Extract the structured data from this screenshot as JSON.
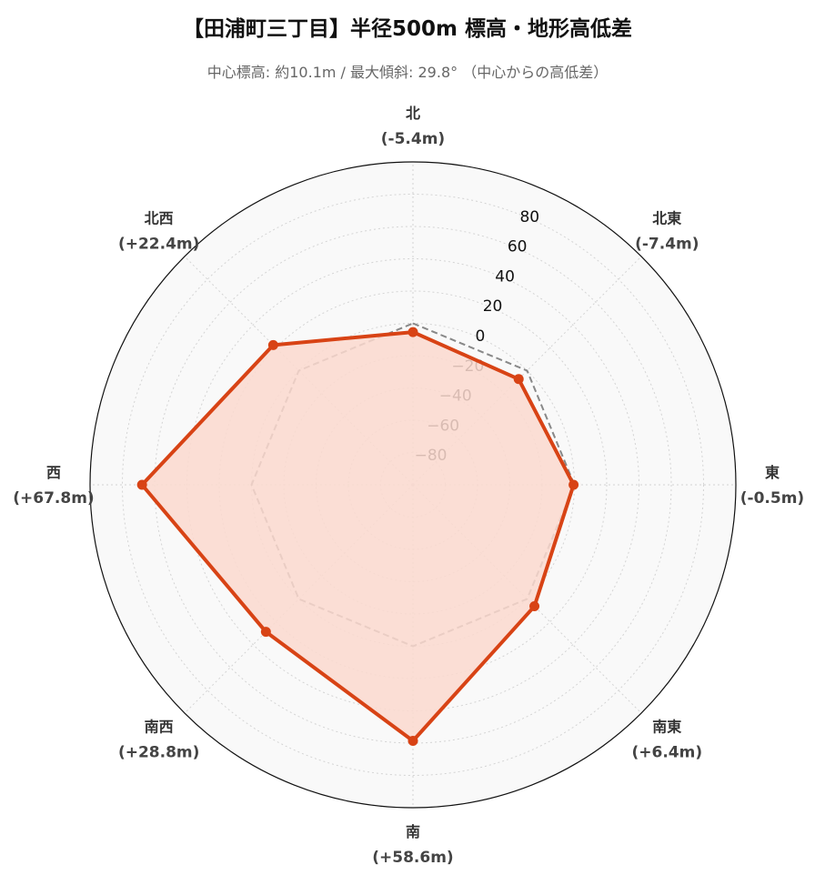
{
  "title": "【田浦町三丁目】半径500m 標高・地形高低差",
  "subtitle": "中心標高: 約10.1m / 最大傾斜: 29.8° （中心からの高低差）",
  "chart_data": {
    "type": "radar",
    "categories": [
      "北",
      "北東",
      "東",
      "南東",
      "南",
      "南西",
      "西",
      "北西"
    ],
    "category_labels": [
      "(-5.4m)",
      "(-7.4m)",
      "(-0.5m)",
      "(+6.4m)",
      "(+58.6m)",
      "(+28.8m)",
      "(+67.8m)",
      "(+22.4m)"
    ],
    "series": [
      {
        "values": [
          -5.4,
          -7.4,
          -0.5,
          6.4,
          58.6,
          28.8,
          67.8,
          22.4
        ]
      }
    ],
    "reference_line": {
      "value": 0,
      "style": "dashed"
    },
    "rlim": [
      -100,
      100
    ],
    "rticks": [
      -80,
      -60,
      -40,
      -20,
      0,
      20,
      40,
      60,
      80
    ],
    "rtick_labels": [
      "−80",
      "−60",
      "−40",
      "−20",
      "0",
      "20",
      "40",
      "60",
      "80"
    ],
    "grid": true,
    "colors": {
      "series": "#d84315",
      "fill": "#fcd9cf",
      "reference": "#888888",
      "background": "#f9f9f9"
    }
  }
}
